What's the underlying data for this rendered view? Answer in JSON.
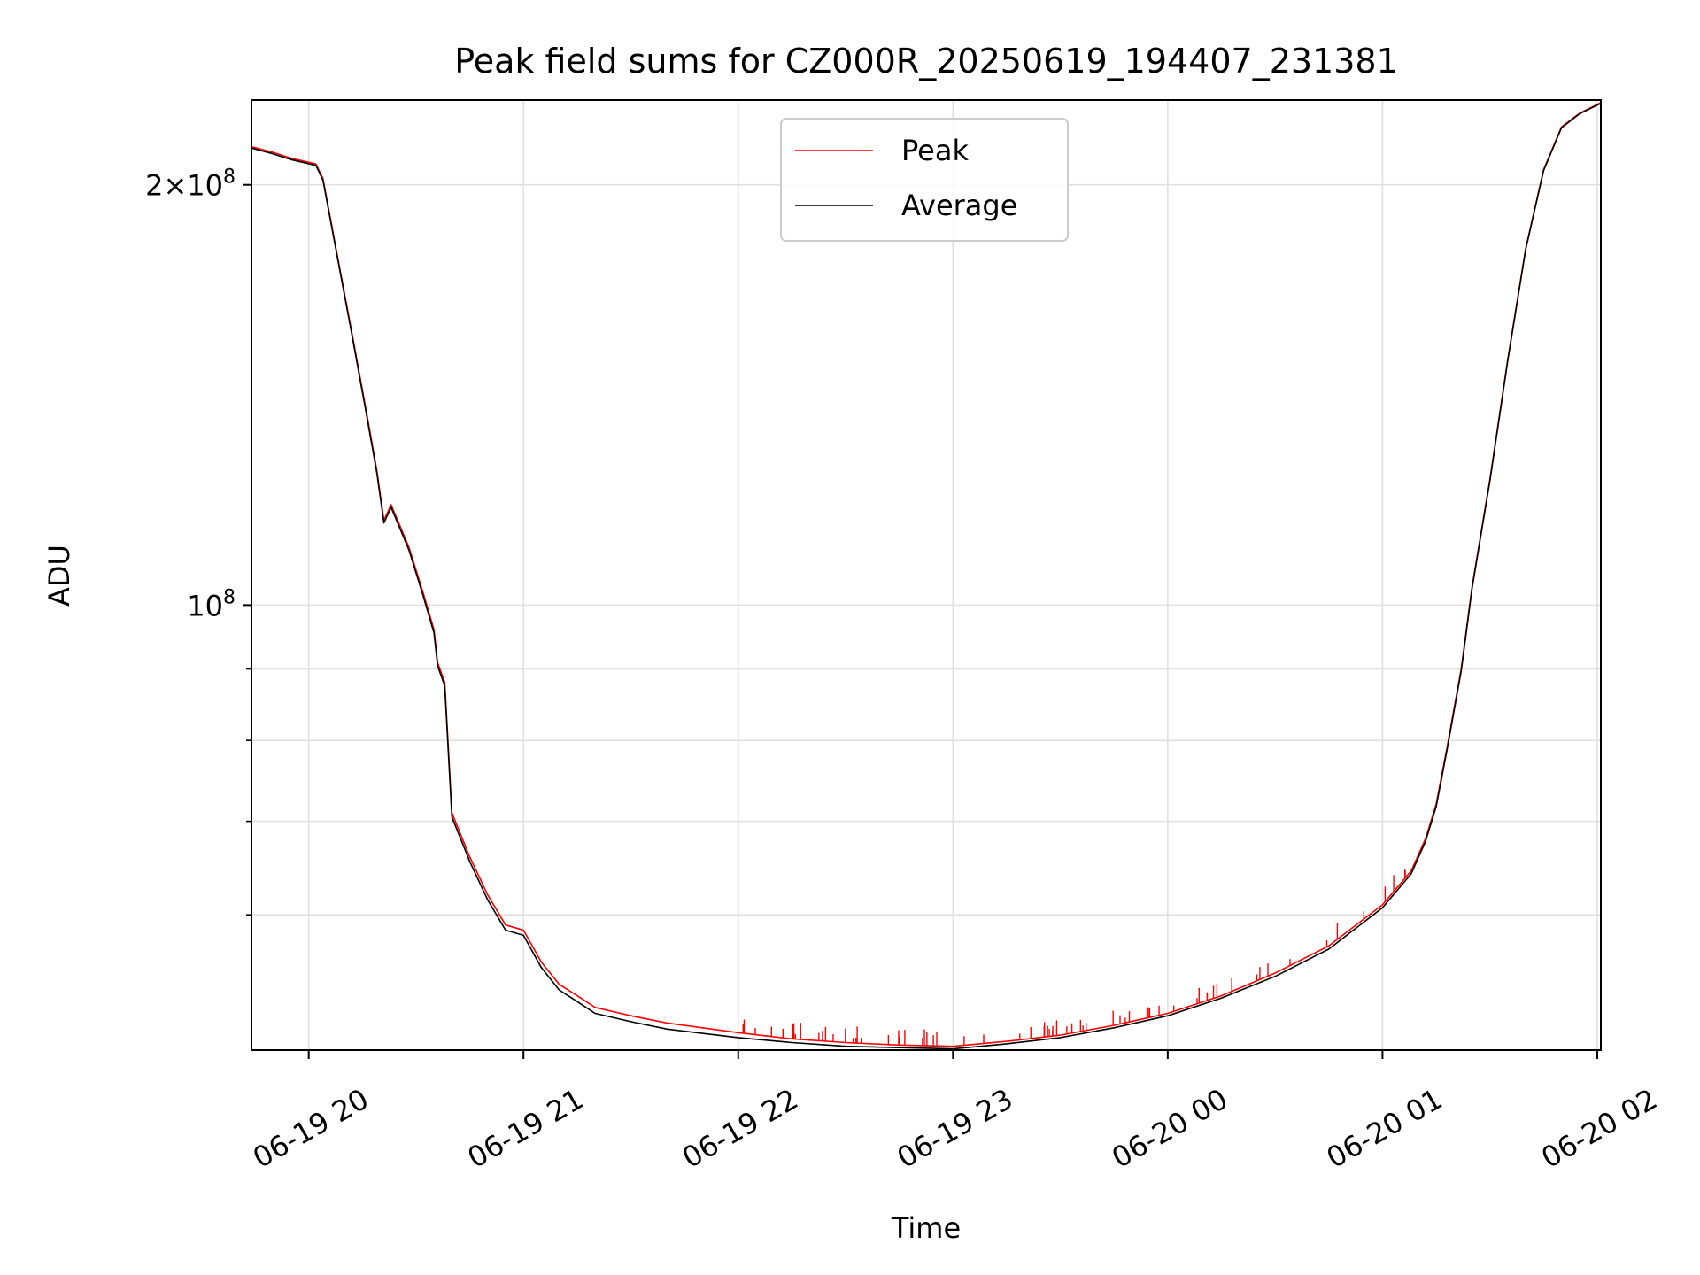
{
  "chart_data": {
    "type": "line",
    "title": "Peak field sums for CZ000R_20250619_194407_231381",
    "xlabel": "Time",
    "ylabel": "ADU",
    "x_axis": {
      "kind": "datetime",
      "range": [
        "2025-06-19 19:44",
        "2025-06-20 02:01"
      ],
      "ticks": [
        {
          "value": "2025-06-19 20:00",
          "label": "06-19 20"
        },
        {
          "value": "2025-06-19 21:00",
          "label": "06-19 21"
        },
        {
          "value": "2025-06-19 22:00",
          "label": "06-19 22"
        },
        {
          "value": "2025-06-19 23:00",
          "label": "06-19 23"
        },
        {
          "value": "2025-06-20 00:00",
          "label": "06-20 00"
        },
        {
          "value": "2025-06-20 01:00",
          "label": "06-20 01"
        },
        {
          "value": "2025-06-20 02:00",
          "label": "06-20 02"
        }
      ],
      "tick_label_rotation_deg": 30
    },
    "y_axis": {
      "scale": "log",
      "range": [
        48000000,
        230000000
      ],
      "major_ticks": [
        {
          "value": 100000000,
          "label_base": "10",
          "label_exp": "8"
        },
        {
          "value": 200000000,
          "label_prefix": "2×",
          "label_base": "10",
          "label_exp": "8"
        }
      ],
      "minor_ticks": [
        60000000,
        70000000,
        80000000,
        90000000
      ]
    },
    "grid": true,
    "legend": {
      "placement": "upper-center",
      "entries": [
        "Peak",
        "Average"
      ]
    },
    "colors": {
      "Peak": "#ff0000",
      "Average": "#000000",
      "grid": "#e0e0e0"
    },
    "series": [
      {
        "name": "Peak",
        "x": [
          "2025-06-19 19:44",
          "2025-06-19 19:50",
          "2025-06-19 19:55",
          "2025-06-19 20:02",
          "2025-06-19 20:04",
          "2025-06-19 20:08",
          "2025-06-19 20:12",
          "2025-06-19 20:16",
          "2025-06-19 20:19",
          "2025-06-19 20:21",
          "2025-06-19 20:23",
          "2025-06-19 20:28",
          "2025-06-19 20:32",
          "2025-06-19 20:35",
          "2025-06-19 20:36",
          "2025-06-19 20:38",
          "2025-06-19 20:40",
          "2025-06-19 20:45",
          "2025-06-19 20:50",
          "2025-06-19 20:55",
          "2025-06-19 21:00",
          "2025-06-19 21:05",
          "2025-06-19 21:10",
          "2025-06-19 21:15",
          "2025-06-19 21:20",
          "2025-06-19 21:30",
          "2025-06-19 21:40",
          "2025-06-19 22:00",
          "2025-06-19 22:15",
          "2025-06-19 22:30",
          "2025-06-19 22:45",
          "2025-06-19 23:00",
          "2025-06-19 23:15",
          "2025-06-19 23:30",
          "2025-06-19 23:45",
          "2025-06-20 00:00",
          "2025-06-20 00:15",
          "2025-06-20 00:30",
          "2025-06-20 00:45",
          "2025-06-20 01:00",
          "2025-06-20 01:08",
          "2025-06-20 01:12",
          "2025-06-20 01:15",
          "2025-06-20 01:18",
          "2025-06-20 01:22",
          "2025-06-20 01:25",
          "2025-06-20 01:30",
          "2025-06-20 01:35",
          "2025-06-20 01:40",
          "2025-06-20 01:45",
          "2025-06-20 01:50",
          "2025-06-20 01:55",
          "2025-06-20 02:01"
        ],
        "y": [
          213000000,
          211000000,
          209000000,
          207000000,
          202000000,
          178000000,
          157000000,
          138000000,
          125000000,
          115000000,
          118000000,
          110000000,
          102000000,
          96000000,
          91000000,
          88000000,
          71000000,
          66000000,
          62000000,
          59000000,
          58500000,
          55500000,
          53500000,
          52500000,
          51500000,
          50800000,
          50200000,
          49400000,
          48900000,
          48600000,
          48400000,
          48300000,
          48700000,
          49200000,
          50000000,
          51000000,
          52500000,
          54500000,
          57000000,
          61000000,
          64500000,
          68000000,
          72000000,
          79000000,
          90000000,
          103000000,
          123000000,
          150000000,
          180000000,
          205000000,
          220000000,
          225000000,
          229000000
        ],
        "spikes": [
          "occasional short upward spikes (~1-2% of value) between 22:00 and 01:15"
        ]
      },
      {
        "name": "Average",
        "x": [
          "2025-06-19 19:44",
          "2025-06-19 19:50",
          "2025-06-19 19:55",
          "2025-06-19 20:02",
          "2025-06-19 20:04",
          "2025-06-19 20:08",
          "2025-06-19 20:12",
          "2025-06-19 20:16",
          "2025-06-19 20:19",
          "2025-06-19 20:21",
          "2025-06-19 20:23",
          "2025-06-19 20:28",
          "2025-06-19 20:32",
          "2025-06-19 20:35",
          "2025-06-19 20:36",
          "2025-06-19 20:38",
          "2025-06-19 20:40",
          "2025-06-19 20:45",
          "2025-06-19 20:50",
          "2025-06-19 20:55",
          "2025-06-19 21:00",
          "2025-06-19 21:05",
          "2025-06-19 21:10",
          "2025-06-19 21:15",
          "2025-06-19 21:20",
          "2025-06-19 21:30",
          "2025-06-19 21:40",
          "2025-06-19 22:00",
          "2025-06-19 22:15",
          "2025-06-19 22:30",
          "2025-06-19 22:45",
          "2025-06-19 23:00",
          "2025-06-19 23:15",
          "2025-06-19 23:30",
          "2025-06-19 23:45",
          "2025-06-20 00:00",
          "2025-06-20 00:15",
          "2025-06-20 00:30",
          "2025-06-20 00:45",
          "2025-06-20 01:00",
          "2025-06-20 01:08",
          "2025-06-20 01:12",
          "2025-06-20 01:15",
          "2025-06-20 01:18",
          "2025-06-20 01:22",
          "2025-06-20 01:25",
          "2025-06-20 01:30",
          "2025-06-20 01:35",
          "2025-06-20 01:40",
          "2025-06-20 01:45",
          "2025-06-20 01:50",
          "2025-06-20 01:55",
          "2025-06-20 02:01"
        ],
        "y": [
          212500000,
          210500000,
          208500000,
          206500000,
          201500000,
          177500000,
          156500000,
          137500000,
          124500000,
          114500000,
          117500000,
          109500000,
          101500000,
          95500000,
          90500000,
          87500000,
          70500000,
          65500000,
          61500000,
          58500000,
          58000000,
          55000000,
          53000000,
          52000000,
          51000000,
          50300000,
          49700000,
          49000000,
          48600000,
          48300000,
          48200000,
          48100000,
          48500000,
          49000000,
          49800000,
          50800000,
          52300000,
          54200000,
          56700000,
          60700000,
          64200000,
          67700000,
          71700000,
          78700000,
          89700000,
          102700000,
          122700000,
          149700000,
          179700000,
          204700000,
          219700000,
          224800000,
          228800000
        ]
      }
    ]
  }
}
